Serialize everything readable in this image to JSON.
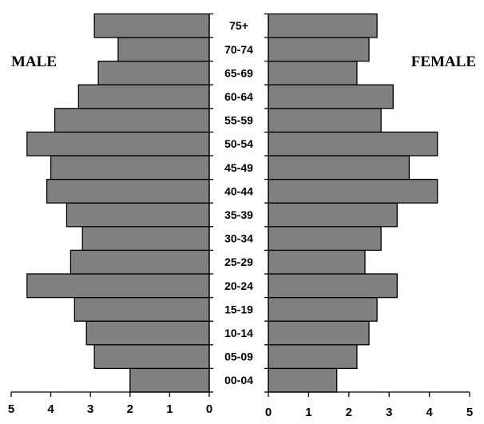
{
  "chart_data": {
    "type": "bar",
    "orientation": "horizontal",
    "layout": "population-pyramid",
    "categories": [
      "00-04",
      "05-09",
      "10-14",
      "15-19",
      "20-24",
      "25-29",
      "30-34",
      "35-39",
      "40-44",
      "45-49",
      "50-54",
      "55-59",
      "60-64",
      "65-69",
      "70-74",
      "75+"
    ],
    "series": [
      {
        "name": "MALE",
        "values": [
          2.0,
          2.9,
          3.1,
          3.4,
          4.6,
          3.5,
          3.2,
          3.6,
          4.1,
          4.0,
          4.6,
          3.9,
          3.3,
          2.8,
          2.3,
          2.9
        ],
        "color": "#808080"
      },
      {
        "name": "FEMALE",
        "values": [
          1.7,
          2.2,
          2.5,
          2.7,
          3.2,
          2.4,
          2.8,
          3.2,
          4.2,
          3.5,
          4.2,
          2.8,
          3.1,
          2.2,
          2.5,
          2.7
        ],
        "color": "#808080"
      }
    ],
    "male_axis": {
      "ticks": [
        "5",
        "4",
        "3",
        "2",
        "1",
        "0"
      ],
      "range": [
        5,
        0
      ]
    },
    "female_axis": {
      "ticks": [
        "0",
        "1",
        "2",
        "3",
        "4",
        "5"
      ],
      "range": [
        0,
        5
      ]
    },
    "grid": false
  }
}
